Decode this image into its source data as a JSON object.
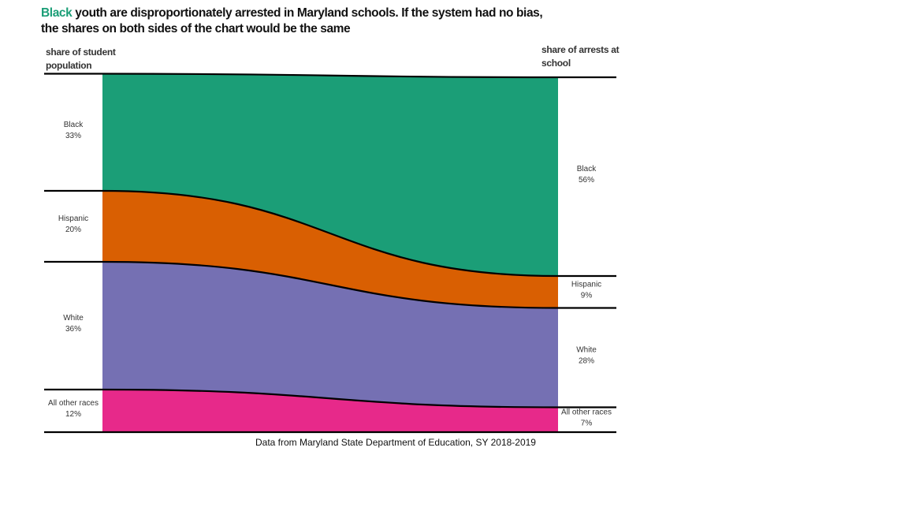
{
  "chart_data": {
    "type": "alluvial",
    "title_highlight": "Black",
    "title_line1": " youth are disproportionately arrested in Maryland schools.  If the system had no bias,",
    "title_line2": "the shares on both sides of the chart would be the same",
    "highlight_color": "#1b9e77",
    "categories": [
      "Black",
      "Hispanic",
      "White",
      "All other races"
    ],
    "colors": [
      "#1b9e77",
      "#d95f02",
      "#7570b3",
      "#e7298a"
    ],
    "series": [
      {
        "name": "share of student population",
        "values": [
          33,
          20,
          36,
          12
        ],
        "value_labels": [
          "33%",
          "20%",
          "36%",
          "12%"
        ]
      },
      {
        "name": "share of arrests at school",
        "values": [
          56,
          9,
          28,
          7
        ],
        "value_labels": [
          "56%",
          "9%",
          "28%",
          "7%"
        ]
      }
    ],
    "source": "Data from Maryland State Department of Education, SY 2018-2019"
  }
}
